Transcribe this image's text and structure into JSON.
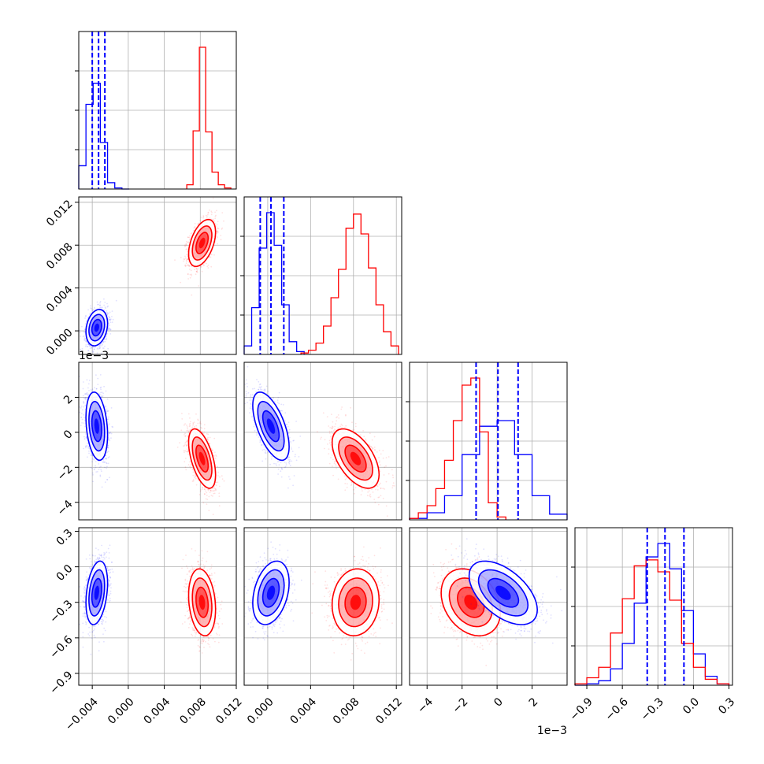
{
  "chart_data": {
    "type": "corner",
    "series": [
      {
        "color": "#0000ff",
        "role": "blue"
      },
      {
        "color": "#ff0000",
        "role": "red"
      }
    ],
    "params": [
      {
        "id": "p0",
        "range": [
          -0.0055,
          0.012
        ],
        "ticks": [
          -0.004,
          0.0,
          0.004,
          0.008,
          0.012
        ],
        "tick_labels": [
          "−0.004",
          "0.000",
          "0.004",
          "0.008",
          "0.012"
        ],
        "offset_label": ""
      },
      {
        "id": "p1",
        "range": [
          -0.0022,
          0.0125
        ],
        "ticks": [
          0.0,
          0.004,
          0.008,
          0.012
        ],
        "tick_labels": [
          "0.000",
          "0.004",
          "0.008",
          "0.012"
        ],
        "offset_label": ""
      },
      {
        "id": "p2",
        "range": [
          -5.0,
          4.0
        ],
        "ticks": [
          -4,
          -2,
          0,
          2
        ],
        "tick_labels": [
          "−4",
          "−2",
          "0",
          "2"
        ],
        "offset_label": "1e−3"
      },
      {
        "id": "p3",
        "range": [
          -1.0,
          0.33
        ],
        "ticks": [
          -0.9,
          -0.6,
          -0.3,
          0.0,
          0.3
        ],
        "tick_labels": [
          "−0.9",
          "−0.6",
          "−0.3",
          "0.0",
          "0.3"
        ],
        "offset_label": ""
      }
    ],
    "quantiles": [
      [
        -0.004,
        -0.0033,
        -0.0026
      ],
      [
        -0.0007,
        0.0003,
        0.0015
      ],
      [
        -1.2,
        0.05,
        1.2
      ],
      [
        -0.39,
        -0.24,
        -0.08
      ]
    ],
    "histograms": [
      {
        "edges": [
          -0.0055,
          -0.0047,
          -0.0039,
          -0.0031,
          -0.0023,
          -0.0015,
          -0.0007,
          0.0001
        ],
        "blue": [
          0.22,
          0.8,
          1.0,
          0.44,
          0.06,
          0.01,
          0
        ],
        "red_edges": [
          0.0065,
          0.0072,
          0.0079,
          0.0086,
          0.0093,
          0.01,
          0.0107,
          0.0114
        ],
        "red": [
          0.04,
          0.55,
          1.34,
          0.54,
          0.16,
          0.04,
          0.01
        ]
      },
      {
        "edges": [
          -0.0022,
          -0.0015,
          -0.0008,
          -0.0001,
          0.0006,
          0.0013,
          0.002,
          0.0027,
          0.0034
        ],
        "blue": [
          0.06,
          0.33,
          0.75,
          1.0,
          0.77,
          0.35,
          0.09,
          0.02
        ],
        "red_edges": [
          0.0031,
          0.0038,
          0.0045,
          0.0052,
          0.0059,
          0.0066,
          0.0073,
          0.008,
          0.0087,
          0.0094,
          0.0101,
          0.0108,
          0.0115,
          0.0122
        ],
        "red": [
          0.01,
          0.03,
          0.08,
          0.2,
          0.4,
          0.6,
          0.89,
          0.99,
          0.85,
          0.61,
          0.35,
          0.16,
          0.06
        ]
      },
      {
        "edges": [
          -5.0,
          -4.0,
          -3.0,
          -2.0,
          -1.0,
          0.0,
          1.0,
          2.0,
          3.0,
          4.0
        ],
        "blue": [
          0.01,
          0.05,
          0.17,
          0.46,
          0.66,
          0.7,
          0.46,
          0.17,
          0.04
        ],
        "red_edges": [
          -5.0,
          -4.5,
          -4.0,
          -3.5,
          -3.0,
          -2.5,
          -2.0,
          -1.5,
          -1.0,
          -0.5,
          0.0,
          0.5
        ],
        "red": [
          0.01,
          0.05,
          0.1,
          0.22,
          0.42,
          0.7,
          0.95,
          1.0,
          0.62,
          0.12,
          0.02
        ]
      },
      {
        "edges": [
          -1.0,
          -0.9,
          -0.8,
          -0.7,
          -0.6,
          -0.5,
          -0.4,
          -0.3,
          -0.2,
          -0.1,
          0.0,
          0.1,
          0.2,
          0.3
        ],
        "blue": [
          0,
          0.01,
          0.03,
          0.11,
          0.28,
          0.55,
          0.86,
          0.95,
          0.78,
          0.5,
          0.21,
          0.06,
          0.01
        ],
        "red": [
          0.01,
          0.05,
          0.12,
          0.35,
          0.58,
          0.8,
          0.84,
          0.76,
          0.57,
          0.28,
          0.12,
          0.04,
          0.01
        ]
      }
    ],
    "clouds": {
      "blue": {
        "mean": [
          -0.0035,
          0.0003,
          0.00035,
          -0.22
        ],
        "cov": [
          [
            3.6e-07,
            1.2e-07,
            -1.5e-07,
            2.5e-05
          ],
          [
            1.2e-07,
            7.2e-07,
            -5e-07,
            3.7e-05
          ],
          [
            -1.5e-07,
            -5e-07,
            9.5e-07,
            -7e-05
          ],
          [
            2.5e-05,
            3.7e-05,
            -7e-05,
            0.018
          ]
        ]
      },
      "red": {
        "mean": [
          0.0082,
          0.0082,
          -0.0015,
          -0.3
        ],
        "cov": [
          [
            5.6e-07,
            3.8e-07,
            -3.5e-07,
            -2.2e-05
          ],
          [
            3.8e-07,
            1.2e-06,
            -5e-07,
            1.2e-05
          ],
          [
            -3.5e-07,
            -5e-07,
            7.2e-07,
            -3.4e-05
          ],
          [
            -2.2e-05,
            1.2e-05,
            -3.4e-05,
            0.02
          ]
        ]
      }
    },
    "grid": true
  }
}
